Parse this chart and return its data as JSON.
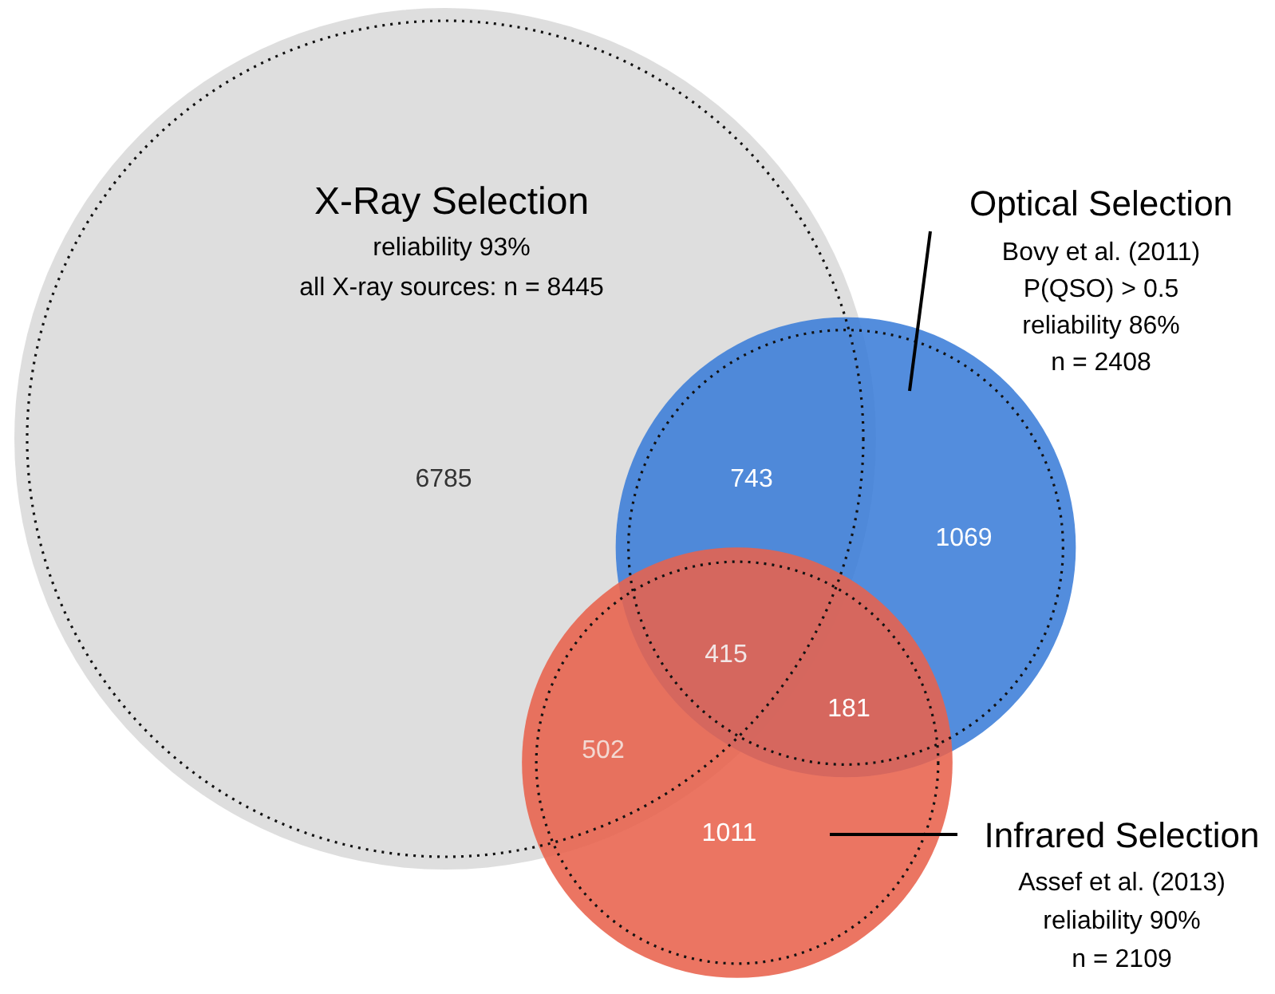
{
  "chart_data": {
    "type": "other",
    "categories": [
      "X-Ray Selection",
      "Optical Selection",
      "Infrared Selection"
    ],
    "values": [
      8445,
      2408,
      2109
    ],
    "value_labels": [
      "all X-ray sources: n = 8445",
      "n = 2408",
      "n = 2109"
    ],
    "colors": [
      "#d9d9d9",
      "#3b7dd8",
      "#e8624c"
    ],
    "annotations": [
      "reliability 93%",
      "Bovy et al. (2011)",
      "P(QSO) > 0.5",
      "reliability 86%",
      "Assef et al. (2013)",
      "reliability 90%",
      "6785",
      "743",
      "1069",
      "415",
      "502",
      "181",
      "1011"
    ]
  }
}
